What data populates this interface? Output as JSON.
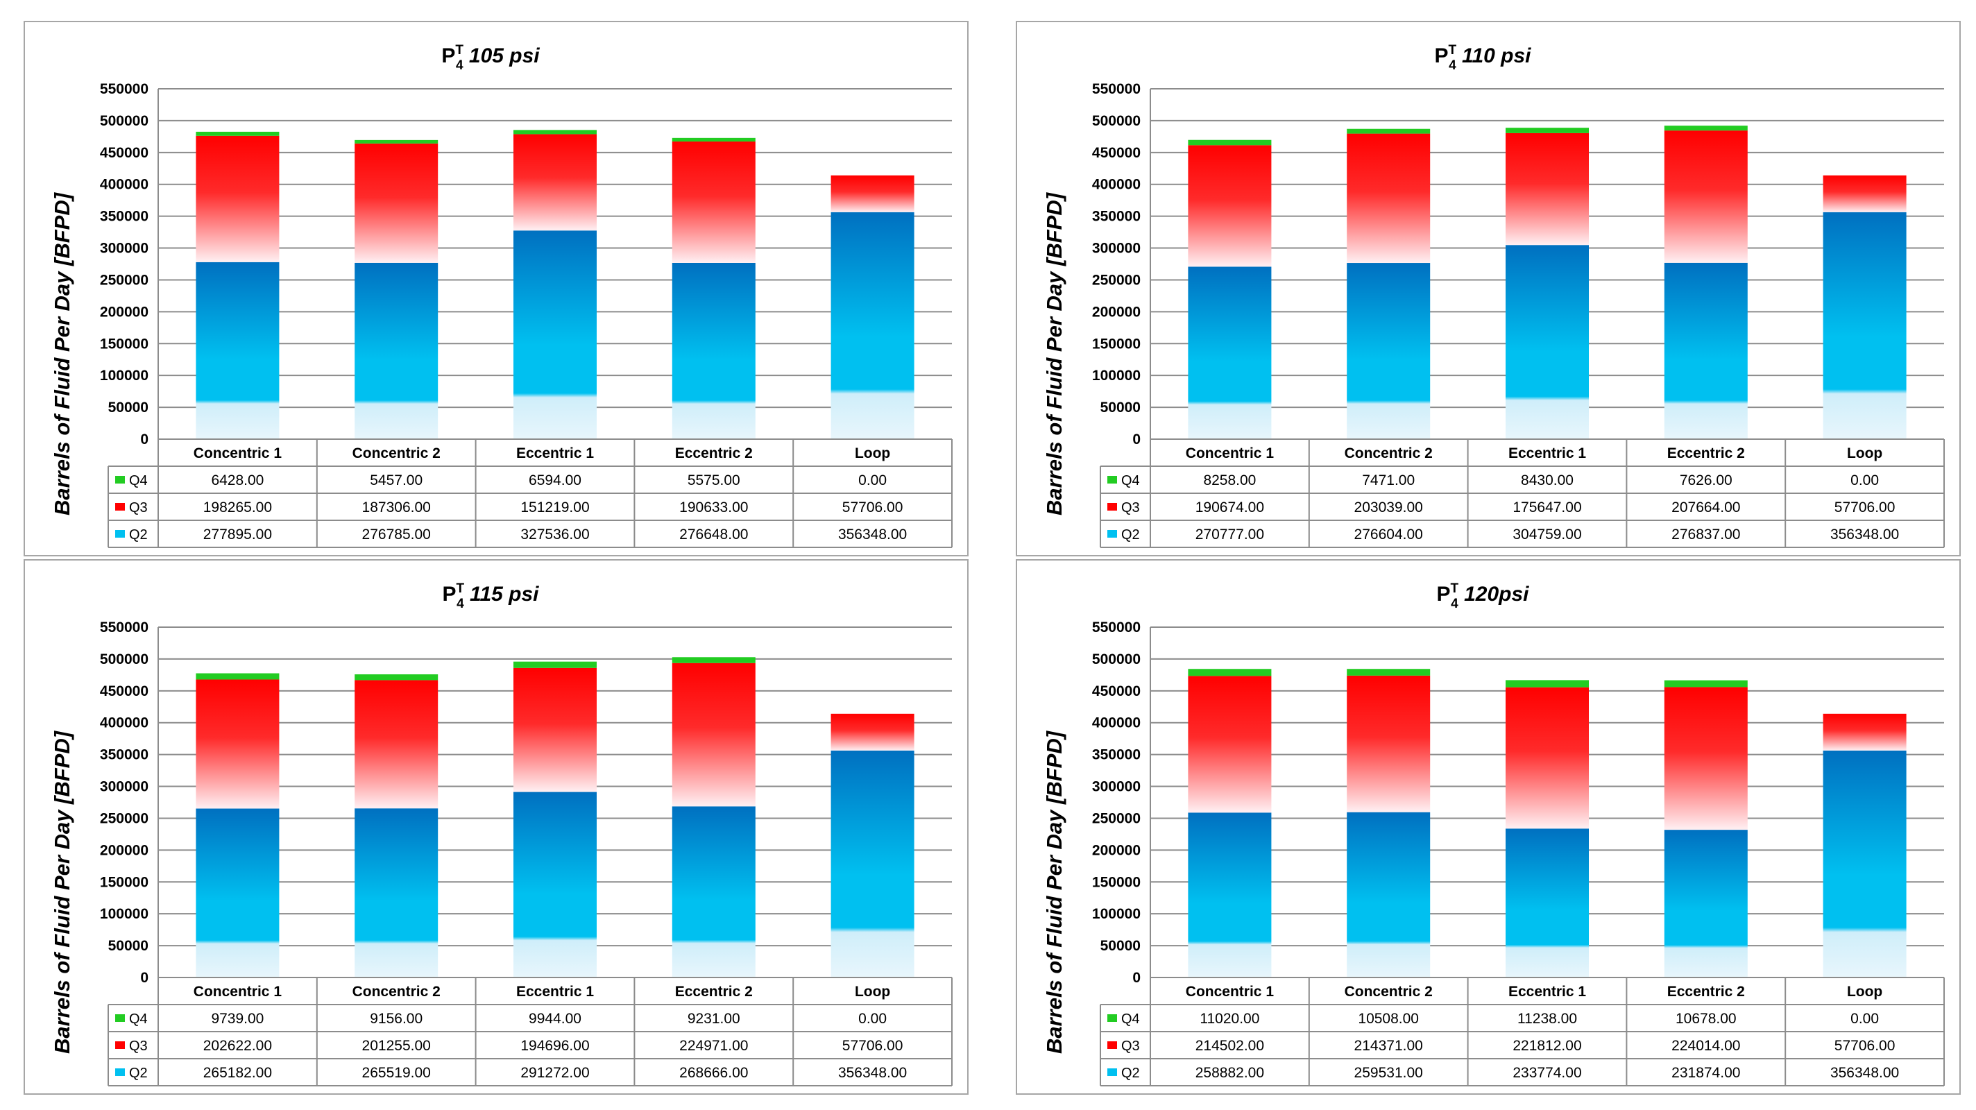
{
  "chart_data": [
    {
      "type": "bar",
      "stacked": true,
      "title_main": "P",
      "title_sup": "T",
      "title_sub": "4",
      "title_rest": " 105 psi",
      "ylabel": "Barrels of Fluid Per Day  [BFPD]",
      "ylim": [
        0,
        550000
      ],
      "yticks": [
        0,
        50000,
        100000,
        150000,
        200000,
        250000,
        300000,
        350000,
        400000,
        450000,
        500000,
        550000
      ],
      "categories": [
        "Concentric 1",
        "Concentric 2",
        "Eccentric 1",
        "Eccentric 2",
        "Loop"
      ],
      "series": [
        {
          "name": "Q2",
          "values": [
            277895,
            276785,
            327536,
            276648,
            356348
          ],
          "labels": [
            "277895.00",
            "276785.00",
            "327536.00",
            "276648.00",
            "356348.00"
          ]
        },
        {
          "name": "Q3",
          "values": [
            198265,
            187306,
            151219,
            190633,
            57706
          ],
          "labels": [
            "198265.00",
            "187306.00",
            "151219.00",
            "190633.00",
            "57706.00"
          ]
        },
        {
          "name": "Q4",
          "values": [
            6428,
            5457,
            6594,
            5575,
            0
          ],
          "labels": [
            "6428.00",
            "5457.00",
            "6594.00",
            "5575.00",
            "0.00"
          ]
        }
      ],
      "grid": true,
      "legend": "data-table"
    },
    {
      "type": "bar",
      "stacked": true,
      "title_main": "P",
      "title_sup": "T",
      "title_sub": "4",
      "title_rest": " 110 psi",
      "ylabel": "Barrels of Fluid Per Day  [BFPD]",
      "ylim": [
        0,
        550000
      ],
      "yticks": [
        0,
        50000,
        100000,
        150000,
        200000,
        250000,
        300000,
        350000,
        400000,
        450000,
        500000,
        550000
      ],
      "categories": [
        "Concentric 1",
        "Concentric 2",
        "Eccentric 1",
        "Eccentric 2",
        "Loop"
      ],
      "series": [
        {
          "name": "Q2",
          "values": [
            270777,
            276604,
            304759,
            276837,
            356348
          ],
          "labels": [
            "270777.00",
            "276604.00",
            "304759.00",
            "276837.00",
            "356348.00"
          ]
        },
        {
          "name": "Q3",
          "values": [
            190674,
            203039,
            175647,
            207664,
            57706
          ],
          "labels": [
            "190674.00",
            "203039.00",
            "175647.00",
            "207664.00",
            "57706.00"
          ]
        },
        {
          "name": "Q4",
          "values": [
            8258,
            7471,
            8430,
            7626,
            0
          ],
          "labels": [
            "8258.00",
            "7471.00",
            "8430.00",
            "7626.00",
            "0.00"
          ]
        }
      ],
      "grid": true,
      "legend": "data-table"
    },
    {
      "type": "bar",
      "stacked": true,
      "title_main": "P",
      "title_sup": "T",
      "title_sub": "4",
      "title_rest": " 115 psi",
      "ylabel": "Barrels of Fluid Per Day  [BFPD]",
      "ylim": [
        0,
        550000
      ],
      "yticks": [
        0,
        50000,
        100000,
        150000,
        200000,
        250000,
        300000,
        350000,
        400000,
        450000,
        500000,
        550000
      ],
      "categories": [
        "Concentric 1",
        "Concentric 2",
        "Eccentric 1",
        "Eccentric 2",
        "Loop"
      ],
      "series": [
        {
          "name": "Q2",
          "values": [
            265182,
            265519,
            291272,
            268666,
            356348
          ],
          "labels": [
            "265182.00",
            "265519.00",
            "291272.00",
            "268666.00",
            "356348.00"
          ]
        },
        {
          "name": "Q3",
          "values": [
            202622,
            201255,
            194696,
            224971,
            57706
          ],
          "labels": [
            "202622.00",
            "201255.00",
            "194696.00",
            "224971.00",
            "57706.00"
          ]
        },
        {
          "name": "Q4",
          "values": [
            9739,
            9156,
            9944,
            9231,
            0
          ],
          "labels": [
            "9739.00",
            "9156.00",
            "9944.00",
            "9231.00",
            "0.00"
          ]
        }
      ],
      "grid": true,
      "legend": "data-table"
    },
    {
      "type": "bar",
      "stacked": true,
      "title_main": "P",
      "title_sup": "T",
      "title_sub": "4",
      "title_rest": " 120psi",
      "ylabel": "Barrels of Fluid Per Day  [BFPD]",
      "ylim": [
        0,
        550000
      ],
      "yticks": [
        0,
        50000,
        100000,
        150000,
        200000,
        250000,
        300000,
        350000,
        400000,
        450000,
        500000,
        550000
      ],
      "categories": [
        "Concentric 1",
        "Concentric 2",
        "Eccentric 1",
        "Eccentric 2",
        "Loop"
      ],
      "series": [
        {
          "name": "Q2",
          "values": [
            258882,
            259531,
            233774,
            231874,
            356348
          ],
          "labels": [
            "258882.00",
            "259531.00",
            "233774.00",
            "231874.00",
            "356348.00"
          ]
        },
        {
          "name": "Q3",
          "values": [
            214502,
            214371,
            221812,
            224014,
            57706
          ],
          "labels": [
            "214502.00",
            "214371.00",
            "221812.00",
            "224014.00",
            "57706.00"
          ]
        },
        {
          "name": "Q4",
          "values": [
            11020,
            10508,
            11238,
            10678,
            0
          ],
          "labels": [
            "11020.00",
            "10508.00",
            "11238.00",
            "10678.00",
            "0.00"
          ]
        }
      ],
      "grid": true,
      "legend": "data-table"
    }
  ],
  "colors": {
    "Q2_top": "#0070c0",
    "Q2_mid": "#00c0f0",
    "Q2_bottom": "#e8f6fc",
    "Q3_top": "#ff0000",
    "Q3_mid": "#ff2a2a",
    "Q3_bottom": "#fff0f3",
    "Q4": "#22cc22",
    "grid": "#8c8c8c",
    "frame": "#a6a6a6",
    "text": "#000000"
  }
}
